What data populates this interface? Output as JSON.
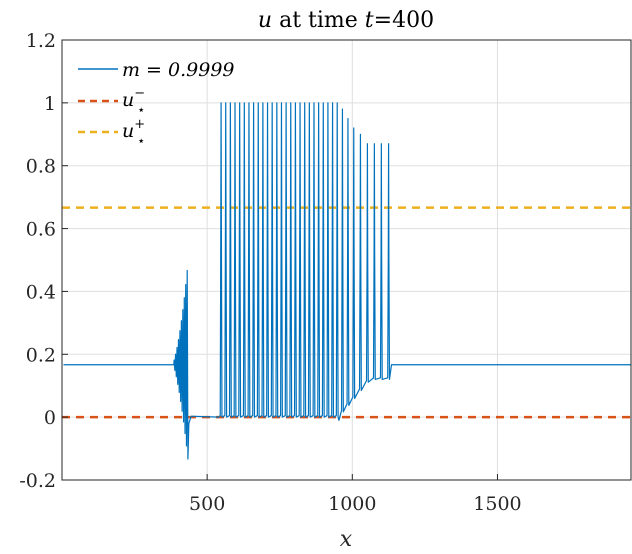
{
  "chart_data": {
    "type": "line",
    "title_parts": {
      "var": "u",
      "mid": " at time ",
      "tvar": "t",
      "value": "=400"
    },
    "xlabel": "x",
    "ylabel": "",
    "xlim": [
      0,
      1960
    ],
    "ylim": [
      -0.2,
      1.2
    ],
    "xticks": [
      500,
      1000,
      1500
    ],
    "yticks": [
      -0.2,
      0,
      0.2,
      0.4,
      0.6,
      0.8,
      1,
      1.2
    ],
    "ytick_labels": [
      "-0.2",
      "0",
      "0.2",
      "0.4",
      "0.6",
      "0.8",
      "1",
      "1.2"
    ],
    "grid": true,
    "legend_position": "top-left",
    "series": [
      {
        "name": "m = 0.9999",
        "color": "#0072BD",
        "style": "solid",
        "baseline": 0.1667,
        "pre_burst": {
          "x_start": 385,
          "x_end": 435,
          "count": 10,
          "amp_start": 0.03,
          "amp_end": 0.3,
          "low_end": -0.02
        },
        "dip_range": [
          445,
          545
        ],
        "spikes_x": [
          548,
          564,
          580,
          596,
          612,
          628,
          644,
          660,
          676,
          692,
          708,
          724,
          740,
          756,
          772,
          788,
          804,
          820,
          836,
          852,
          868,
          884,
          900,
          916,
          932,
          948,
          966,
          985,
          1005,
          1028,
          1052,
          1076,
          1100,
          1125
        ],
        "spikes_y": [
          1,
          1,
          1,
          1,
          1,
          1,
          1,
          1,
          1,
          1,
          1,
          1,
          1,
          1,
          1,
          1,
          1,
          1,
          1,
          1,
          1,
          1,
          1,
          1,
          1,
          1,
          0.98,
          0.95,
          0.92,
          0.9,
          0.87,
          0.87,
          0.87,
          0.87
        ],
        "recovery_range": [
          960,
          1010
        ],
        "tail_start": 1135
      },
      {
        "name": "u_star_minus",
        "label_base": "u",
        "label_sub": "⋆",
        "label_sup": "−",
        "color": "#D95319",
        "style": "dashed",
        "value": 0
      },
      {
        "name": "u_star_plus",
        "label_base": "u",
        "label_sub": "⋆",
        "label_sup": "+",
        "color": "#EDB120",
        "style": "dashed",
        "value": 0.6667
      }
    ]
  }
}
